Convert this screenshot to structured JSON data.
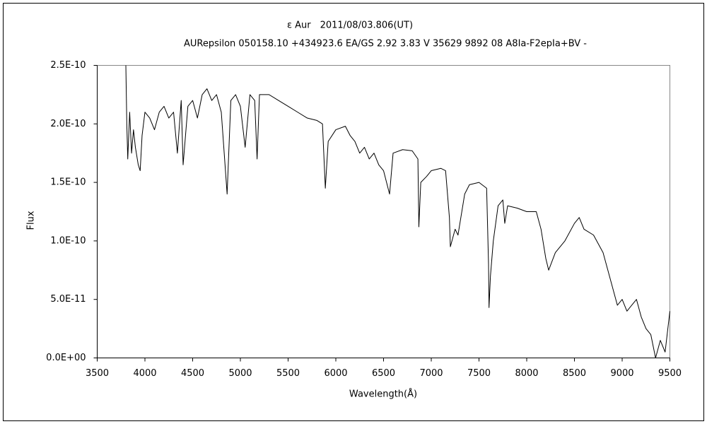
{
  "chart_data": {
    "type": "line",
    "title": "ε Aur　2011/08/03.806(UT)",
    "subtitle": "AURepsilon 050158.10 +434923.6 EA/GS 2.92 3.83 V 35629 9892 08 A8Ia-F2epIa+BV -",
    "xlabel": "Wavelength(Å)",
    "ylabel": "Flux",
    "color": "#000000",
    "xlim": [
      3500,
      9500
    ],
    "xticks": [
      3500,
      4000,
      4500,
      5000,
      5500,
      6000,
      6500,
      7000,
      7500,
      8000,
      8500,
      9000,
      9500
    ],
    "ylim": [
      0,
      2.5e-10
    ],
    "yticks": [
      {
        "value": 0,
        "label": "0.0E+00"
      },
      {
        "value": 5e-11,
        "label": "5.0E-11"
      },
      {
        "value": 1e-10,
        "label": "1.0E-10"
      },
      {
        "value": 1.5e-10,
        "label": "1.5E-10"
      },
      {
        "value": 2e-10,
        "label": "2.0E-10"
      },
      {
        "value": 2.5e-10,
        "label": "2.5E-10"
      }
    ],
    "x": [
      3800,
      3810,
      3820,
      3840,
      3860,
      3880,
      3900,
      3930,
      3950,
      3970,
      4000,
      4050,
      4100,
      4150,
      4200,
      4250,
      4300,
      4340,
      4380,
      4400,
      4450,
      4500,
      4550,
      4600,
      4650,
      4700,
      4750,
      4800,
      4861,
      4900,
      4950,
      5000,
      5050,
      5100,
      5150,
      5175,
      5200,
      5300,
      5400,
      5500,
      5600,
      5700,
      5800,
      5860,
      5890,
      5920,
      6000,
      6100,
      6150,
      6200,
      6250,
      6300,
      6350,
      6400,
      6450,
      6500,
      6563,
      6600,
      6700,
      6800,
      6860,
      6870,
      6890,
      6950,
      7000,
      7100,
      7150,
      7190,
      7200,
      7250,
      7280,
      7300,
      7350,
      7400,
      7500,
      7580,
      7600,
      7605,
      7620,
      7650,
      7700,
      7750,
      7770,
      7800,
      7900,
      8000,
      8100,
      8150,
      8200,
      8230,
      8300,
      8400,
      8500,
      8550,
      8600,
      8700,
      8800,
      8850,
      8900,
      8950,
      9000,
      9050,
      9100,
      9150,
      9200,
      9250,
      9300,
      9350,
      9400,
      9450,
      9500
    ],
    "values": [
      2.5e-10,
      2e-10,
      1.7e-10,
      2.1e-10,
      1.75e-10,
      1.95e-10,
      1.8e-10,
      1.65e-10,
      1.6e-10,
      1.9e-10,
      2.1e-10,
      2.05e-10,
      1.95e-10,
      2.1e-10,
      2.15e-10,
      2.05e-10,
      2.1e-10,
      1.75e-10,
      2.2e-10,
      1.65e-10,
      2.15e-10,
      2.2e-10,
      2.05e-10,
      2.25e-10,
      2.3e-10,
      2.2e-10,
      2.25e-10,
      2.1e-10,
      1.4e-10,
      2.2e-10,
      2.25e-10,
      2.15e-10,
      1.8e-10,
      2.25e-10,
      2.2e-10,
      1.7e-10,
      2.25e-10,
      2.25e-10,
      2.2e-10,
      2.15e-10,
      2.1e-10,
      2.05e-10,
      2.03e-10,
      2e-10,
      1.45e-10,
      1.85e-10,
      1.95e-10,
      1.98e-10,
      1.9e-10,
      1.85e-10,
      1.75e-10,
      1.8e-10,
      1.7e-10,
      1.75e-10,
      1.65e-10,
      1.6e-10,
      1.4e-10,
      1.75e-10,
      1.78e-10,
      1.77e-10,
      1.7e-10,
      1.12e-10,
      1.5e-10,
      1.55e-10,
      1.6e-10,
      1.62e-10,
      1.6e-10,
      1.2e-10,
      9.5e-11,
      1.1e-10,
      1.05e-10,
      1.15e-10,
      1.4e-10,
      1.48e-10,
      1.5e-10,
      1.45e-10,
      8e-11,
      4.3e-11,
      7e-11,
      1e-10,
      1.3e-10,
      1.35e-10,
      1.15e-10,
      1.3e-10,
      1.28e-10,
      1.25e-10,
      1.25e-10,
      1.1e-10,
      8.5e-11,
      7.5e-11,
      9e-11,
      1e-10,
      1.15e-10,
      1.2e-10,
      1.1e-10,
      1.05e-10,
      9e-11,
      7.5e-11,
      6e-11,
      4.5e-11,
      5e-11,
      4e-11,
      4.5e-11,
      5e-11,
      3.5e-11,
      2.5e-11,
      2e-11,
      0,
      1.5e-11,
      5e-12,
      4e-11
    ]
  }
}
